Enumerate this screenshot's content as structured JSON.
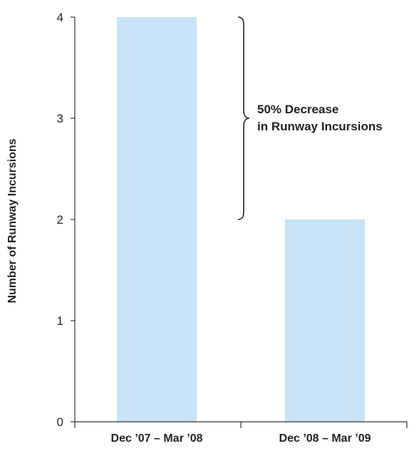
{
  "chart_data": {
    "type": "bar",
    "categories": [
      "Dec ’07 – Mar ’08",
      "Dec ’08 – Mar ’09"
    ],
    "values": [
      4,
      2
    ],
    "title": "",
    "xlabel": "",
    "ylabel": "Number of Runway Incursions",
    "ylim": [
      0,
      4
    ],
    "yticks": [
      0,
      1,
      2,
      3,
      4
    ],
    "grid": false,
    "legend": "none",
    "annotation": {
      "line1": "50% Decrease",
      "line2": "in Runway Incursions",
      "from_value": 4,
      "to_value": 2
    }
  },
  "colors": {
    "bar": "#c7e3f5",
    "axis": "#333333",
    "text": "#222222",
    "brace": "#222222"
  }
}
